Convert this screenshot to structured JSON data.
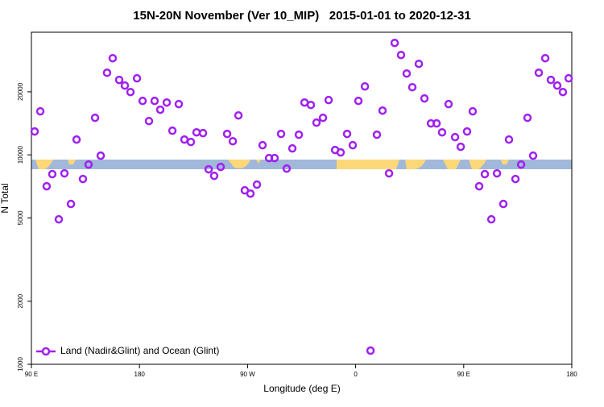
{
  "chart_data": {
    "type": "scatter",
    "title": "15N-20N November (Ver 10_MIP)   2015-01-01 to 2020-12-31",
    "x_label": "Longitude (deg E)",
    "y_label": "N Total",
    "log_y": true,
    "legend_position": "lower left",
    "xlim": [
      90,
      540
    ],
    "xticks": [
      {
        "value": 90,
        "label": "90 E"
      },
      {
        "value": 180,
        "label": "180"
      },
      {
        "value": 270,
        "label": "90 W"
      },
      {
        "value": 360,
        "label": "0"
      },
      {
        "value": 450,
        "label": "90 E"
      },
      {
        "value": 540,
        "label": "180"
      }
    ],
    "ylim": [
      1000,
      38500
    ],
    "yticks": [
      1000,
      2000,
      5000,
      10000,
      20000
    ],
    "series": [
      {
        "name": "Land (Nadir&Glint) and Ocean (Glint)",
        "color": "#a020f0",
        "x": [
          92.7,
          97.4,
          102.7,
          107.4,
          112.8,
          117.5,
          122.9,
          127.6,
          132.9,
          137.6,
          143,
          147.7,
          153,
          157.7,
          163.1,
          167.8,
          172.5,
          177.9,
          182.6,
          187.9,
          192.6,
          197.3,
          202.7,
          207.4,
          212.7,
          217.4,
          222.8,
          227.5,
          232.9,
          237.6,
          242.2,
          247.6,
          253,
          257.7,
          262.4,
          267.7,
          272.4,
          277.8,
          282.5,
          287.9,
          292.5,
          297.9,
          302.6,
          307.3,
          312.7,
          317.4,
          322.7,
          327.4,
          332.8,
          337.5,
          342.9,
          347.5,
          352.9,
          357.6,
          362.3,
          367.7,
          372.4,
          377.7,
          382.4,
          387.8,
          392.5,
          397.8,
          402.5,
          407.2,
          412.6,
          417.3,
          422.7,
          427.4,
          432,
          437.4,
          442.8,
          447.5,
          452.8,
          457.5,
          462.9,
          467.6,
          473,
          477.7,
          483,
          487.7,
          493.1,
          497.8,
          503.1,
          507.8,
          512.5,
          517.9,
          522.6,
          527.9,
          532.6,
          537.4
        ],
        "values": [
          12930,
          16130,
          7080,
          8090,
          4920,
          8160,
          5830,
          11830,
          7670,
          8990,
          15030,
          9910,
          24660,
          28940,
          22800,
          21420,
          19950,
          23200,
          18100,
          14500,
          18100,
          16430,
          17780,
          13040,
          17470,
          11830,
          11520,
          12810,
          12700,
          8530,
          7940,
          8760,
          12590,
          11620,
          15430,
          6770,
          6530,
          7210,
          11120,
          9650,
          9650,
          12590,
          8600,
          10730,
          12480,
          17780,
          17310,
          14250,
          15030,
          18260,
          10550,
          10270,
          12590,
          11120,
          18100,
          21220,
          1162,
          12480,
          16270,
          8160,
          34240,
          29980,
          24460,
          21040,
          27200,
          18590,
          14130,
          14130,
          12810,
          17470,
          12150,
          10930,
          12930,
          16130,
          7080,
          8090,
          4920,
          8160,
          5830,
          11830,
          7670,
          8990,
          15030,
          9910,
          24660,
          28940,
          22800,
          21420,
          19950,
          23200
        ]
      }
    ]
  }
}
